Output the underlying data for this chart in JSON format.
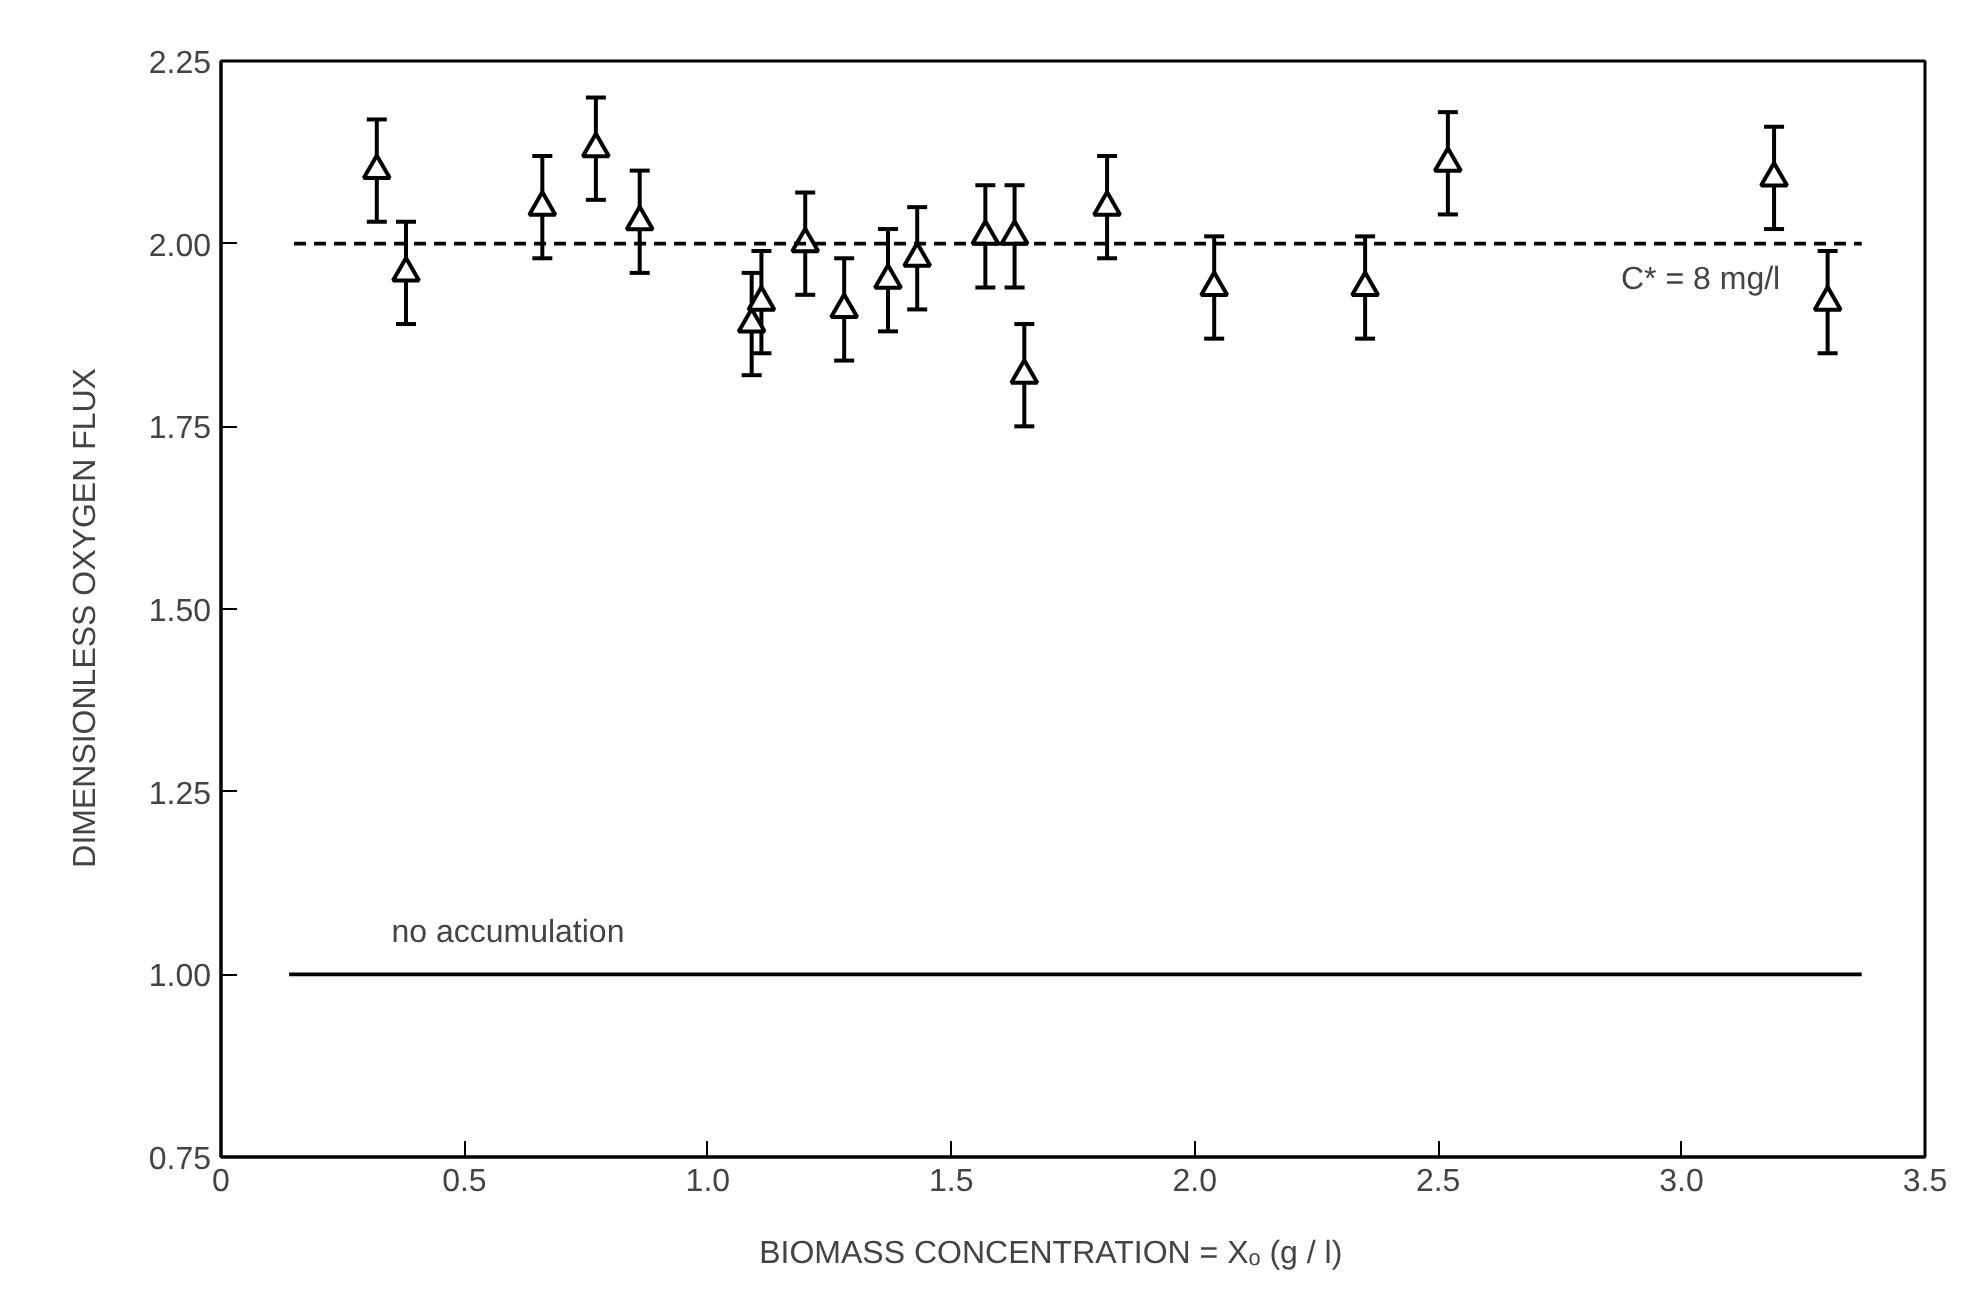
{
  "chart_data": {
    "type": "scatter",
    "xlabel": "BIOMASS CONCENTRATION  =  Xₒ    (g / l)",
    "ylabel": "DIMENSIONLESS  OXYGEN  FLUX",
    "xlim": [
      0,
      3.5
    ],
    "ylim": [
      0.75,
      2.25
    ],
    "xticks": [
      0,
      {
        "value": 0.5,
        "label": "0.5"
      },
      {
        "value": 1,
        "label": "1.0"
      },
      {
        "value": 1.5,
        "label": "1.5"
      },
      {
        "value": 2,
        "label": "2.0"
      },
      {
        "value": 2.5,
        "label": "2.5"
      },
      {
        "value": 3,
        "label": "3.0"
      },
      {
        "value": 3.5,
        "label": "3.5"
      }
    ],
    "yticks": [
      0.75,
      {
        "value": 1,
        "label": "1.00"
      },
      1.25,
      {
        "value": 1.5,
        "label": "1.50"
      },
      1.75,
      {
        "value": 2,
        "label": "2.00"
      },
      2.25
    ],
    "grid": false,
    "series": [
      {
        "marker": "triangle",
        "color": "#000000",
        "x": [
          0.32,
          0.38,
          0.66,
          0.77,
          0.86,
          1.09,
          1.11,
          1.2,
          1.28,
          1.37,
          1.43,
          1.57,
          1.63,
          1.65,
          1.82,
          2.04,
          2.35,
          2.52,
          3.19,
          3.3
        ],
        "values": [
          2.1,
          1.96,
          2.05,
          2.13,
          2.03,
          1.89,
          1.92,
          2.0,
          1.91,
          1.95,
          1.98,
          2.01,
          2.01,
          1.82,
          2.05,
          1.94,
          1.94,
          2.11,
          2.09,
          1.92
        ],
        "errors": [
          0.07,
          0.07,
          0.07,
          0.07,
          0.07,
          0.07,
          0.07,
          0.07,
          0.07,
          0.07,
          0.07,
          0.07,
          0.07,
          0.07,
          0.07,
          0.07,
          0.07,
          0.07,
          0.07,
          0.07
        ]
      },
      {
        "type": "line",
        "color": "#000000",
        "x": [
          0.15,
          3.37
        ],
        "values": [
          2.0,
          2.0
        ],
        "line_style": "dashed"
      },
      {
        "type": "line",
        "color": "#000000",
        "x": [
          0.14,
          3.37
        ],
        "values": [
          1.0,
          1.0
        ],
        "line_style": "solid"
      }
    ],
    "annotations": [
      {
        "text": "no accumulation",
        "x": 0.35,
        "y": 1.0
      },
      "C* = 8 mg/l"
    ]
  }
}
